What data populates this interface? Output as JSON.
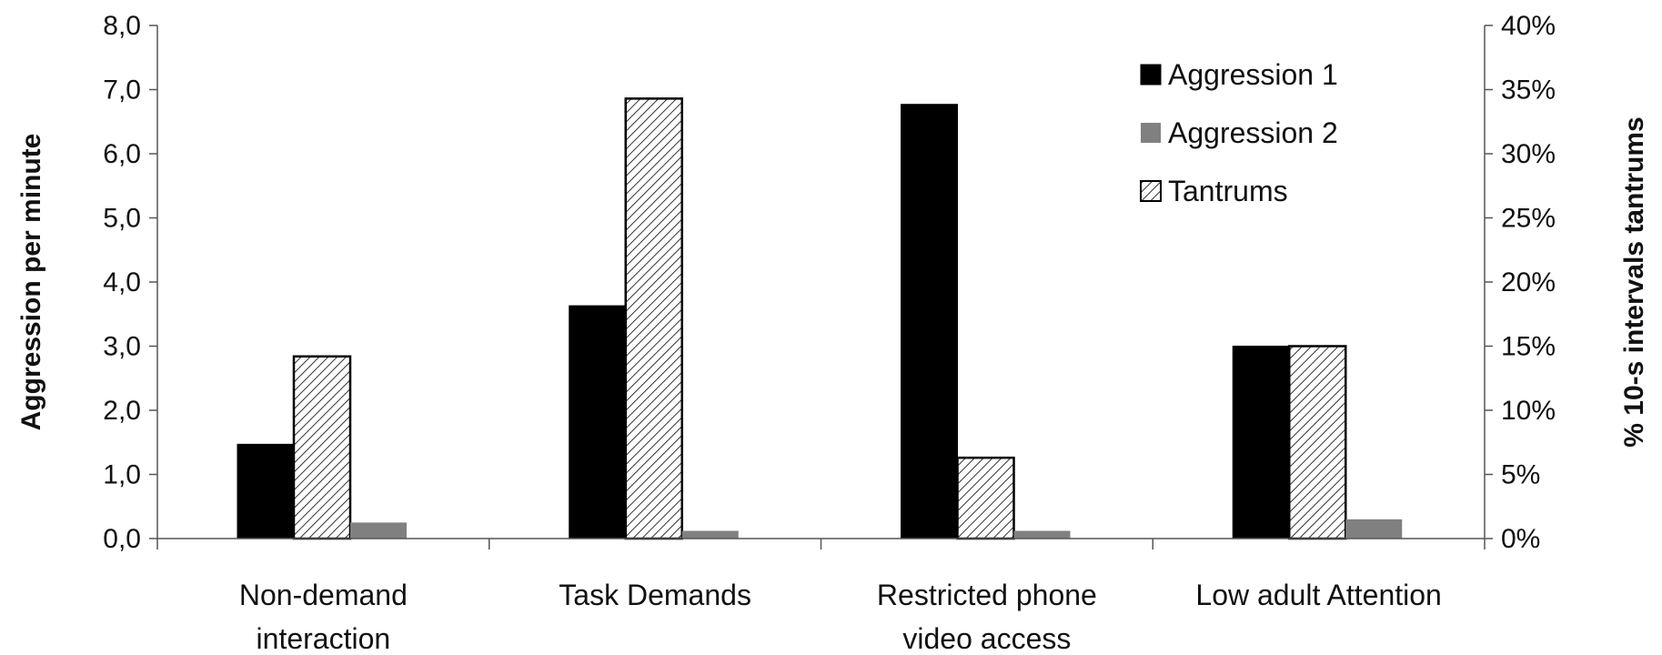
{
  "chart_data": {
    "type": "bar",
    "categories": [
      [
        "Non-demand",
        "interaction"
      ],
      [
        "Task Demands"
      ],
      [
        "Restricted phone",
        "video access"
      ],
      [
        "Low adult Attention"
      ]
    ],
    "series": [
      {
        "name": "Aggression 1",
        "axis": "left",
        "values": [
          1.47,
          3.63,
          6.77,
          3.0
        ],
        "color": "#000000"
      },
      {
        "name": "Tantrums",
        "axis": "right",
        "values": [
          14.2,
          34.3,
          6.3,
          15.0
        ],
        "pattern": "diagonal-hatch"
      },
      {
        "name": "Aggression 2",
        "axis": "left",
        "values": [
          0.25,
          0.12,
          0.12,
          0.3
        ],
        "color": "#808080"
      }
    ],
    "ylabel": "Aggression per minute",
    "y2label": "% 10-s intervals tantrums",
    "ylim": [
      0,
      8
    ],
    "y2lim": [
      0,
      40
    ],
    "yticks": [
      "0,0",
      "1,0",
      "2,0",
      "3,0",
      "4,0",
      "5,0",
      "6,0",
      "7,0",
      "8,0"
    ],
    "y2ticks": [
      "0%",
      "5%",
      "10%",
      "15%",
      "20%",
      "25%",
      "30%",
      "35%",
      "40%"
    ],
    "legend": {
      "position": "top-right-inside",
      "entries": [
        {
          "label": "Aggression 1",
          "style": "solid",
          "color": "#000000"
        },
        {
          "label": "Aggression 2",
          "style": "solid",
          "color": "#808080"
        },
        {
          "label": "Tantrums",
          "style": "hatch"
        }
      ]
    },
    "grid": false
  }
}
